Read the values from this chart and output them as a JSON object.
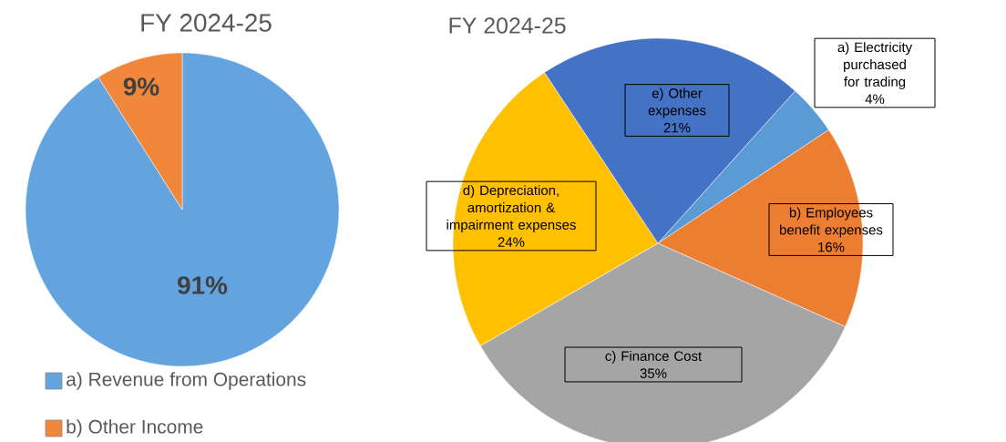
{
  "chart_data": [
    {
      "type": "pie",
      "title": "FY 2024-25",
      "categories": [
        "a) Revenue from Operations",
        "b) Other  Income"
      ],
      "values": [
        91,
        9
      ],
      "value_labels": [
        "91%",
        "9%"
      ],
      "colors": [
        "#62a3e0",
        "#f0873a"
      ],
      "legend": "bottom"
    },
    {
      "type": "pie",
      "title": "FY 2024-25",
      "categories": [
        "a) Electricity purchased for trading",
        "b) Employees benefit expenses",
        "c) Finance Cost",
        "d) Depreciation, amortization & impairment expenses",
        "e) Other expenses"
      ],
      "values": [
        4,
        16,
        35,
        24,
        21
      ],
      "value_labels": [
        "4%",
        "16%",
        "35%",
        "24%",
        "21%"
      ],
      "colors": [
        "#5b9bd5",
        "#ed7d31",
        "#a5a5a5",
        "#ffc000",
        "#4472c4"
      ]
    }
  ]
}
